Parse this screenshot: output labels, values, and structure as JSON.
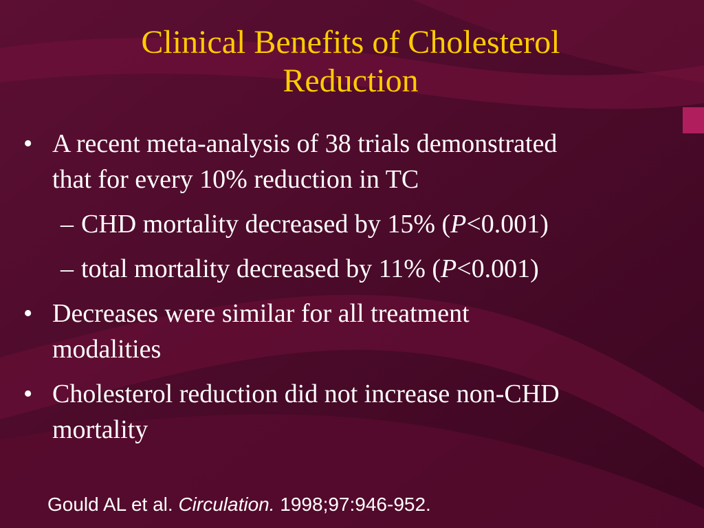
{
  "slide": {
    "title_lines": [
      "Clinical Benefits of Cholesterol",
      "Reduction"
    ],
    "bullets": [
      {
        "text_lines": [
          "A recent meta-analysis of 38 trials demonstrated",
          "that for every 10% reduction in TC"
        ],
        "sub": [
          {
            "before": "CHD mortality decreased by 15% (",
            "italic": "P",
            "after": "<0.001)"
          },
          {
            "before": "total mortality decreased by 11% (",
            "italic": "P",
            "after": "<0.001)"
          }
        ]
      },
      {
        "text_lines": [
          "Decreases were similar for all treatment",
          "modalities"
        ]
      },
      {
        "text_lines": [
          "Cholesterol reduction did not increase non-CHD",
          "mortality"
        ]
      }
    ],
    "bullet_glyph": "•",
    "dash_glyph": "–",
    "citation": {
      "authors": "Gould AL et al.",
      "journal": "Circulation.",
      "ref": "1998;97:946-952."
    }
  },
  "colors": {
    "background": "#4a0a2a",
    "title": "#ffcc00",
    "text": "#ffffff",
    "swoosh": "#7a1440"
  }
}
